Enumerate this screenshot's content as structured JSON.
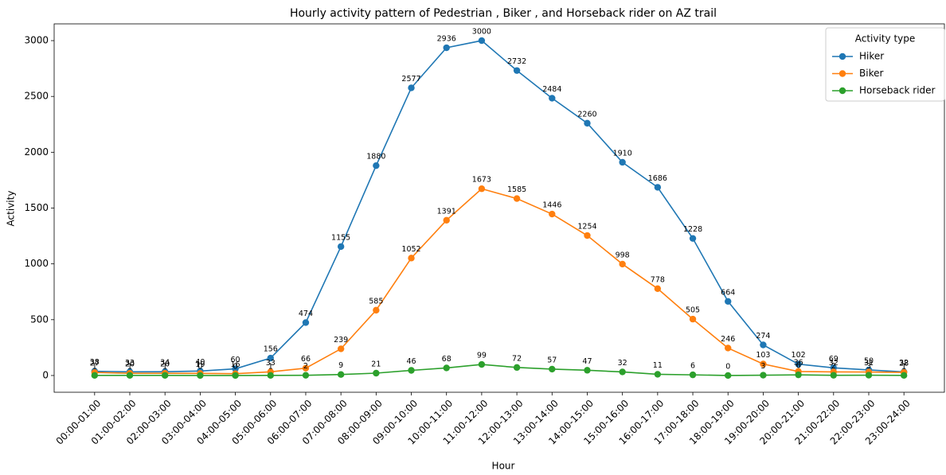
{
  "chart_data": {
    "type": "line",
    "title": "Hourly activity pattern of Pedestrian , Biker , and Horseback rider on AZ trail",
    "x_label": "Hour",
    "y_label": "Activity",
    "legend_title": "Activity type",
    "legend_position": "upper right",
    "categories": [
      "00:00-01:00",
      "01:00-02:00",
      "02:00-03:00",
      "03:00-04:00",
      "04:00-05:00",
      "05:00-06:00",
      "06:00-07:00",
      "07:00-08:00",
      "08:00-09:00",
      "09:00-10:00",
      "10:00-11:00",
      "11:00-12:00",
      "12:00-13:00",
      "13:00-14:00",
      "14:00-15:00",
      "15:00-16:00",
      "16:00-17:00",
      "17:00-18:00",
      "18:00-19:00",
      "19:00-20:00",
      "20:00-21:00",
      "21:00-22:00",
      "22:00-23:00",
      "23:00-24:00"
    ],
    "series": [
      {
        "name": "Hiker",
        "color": "#1f77b4",
        "values": [
          38,
          33,
          34,
          40,
          60,
          156,
          474,
          1155,
          1880,
          2577,
          2936,
          3000,
          2732,
          2484,
          2260,
          1910,
          1686,
          1228,
          664,
          274,
          102,
          69,
          50,
          32
        ]
      },
      {
        "name": "Biker",
        "color": "#ff7f0e",
        "values": [
          27,
          20,
          20,
          19,
          16,
          33,
          66,
          239,
          585,
          1052,
          1391,
          1673,
          1585,
          1446,
          1254,
          998,
          778,
          505,
          246,
          103,
          36,
          32,
          31,
          28
        ]
      },
      {
        "name": "Horseback rider",
        "color": "#2ca02c",
        "values": [
          1,
          1,
          1,
          0,
          0,
          1,
          2,
          9,
          21,
          46,
          68,
          99,
          72,
          57,
          47,
          32,
          11,
          6,
          0,
          3,
          6,
          2,
          3,
          1
        ]
      }
    ],
    "ylim": [
      -150,
      3150
    ],
    "yticks": [
      0,
      500,
      1000,
      1500,
      2000,
      2500,
      3000
    ],
    "grid": false
  }
}
